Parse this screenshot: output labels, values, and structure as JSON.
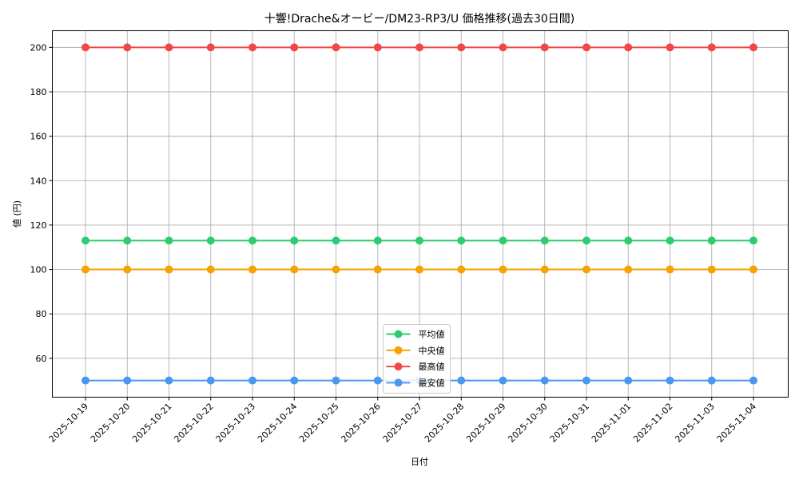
{
  "chart_data": {
    "type": "line",
    "title": "十響!Drache&オービー/DM23-RP3/U 価格推移(過去30日間)",
    "xlabel": "日付",
    "ylabel": "値 (円)",
    "x": [
      "2025-10-19",
      "2025-10-20",
      "2025-10-21",
      "2025-10-22",
      "2025-10-23",
      "2025-10-24",
      "2025-10-25",
      "2025-10-26",
      "2025-10-27",
      "2025-10-28",
      "2025-10-29",
      "2025-10-30",
      "2025-10-31",
      "2025-11-01",
      "2025-11-02",
      "2025-11-03",
      "2025-11-04"
    ],
    "ylim": [
      42.5,
      207.5
    ],
    "yticks": [
      60,
      80,
      100,
      120,
      140,
      160,
      180,
      200
    ],
    "grid": true,
    "legend_position": "lower center",
    "series": [
      {
        "name": "平均値",
        "color": "#2ecc71",
        "values": [
          113,
          113,
          113,
          113,
          113,
          113,
          113,
          113,
          113,
          113,
          113,
          113,
          113,
          113,
          113,
          113,
          113
        ]
      },
      {
        "name": "中央値",
        "color": "#f5a300",
        "values": [
          100,
          100,
          100,
          100,
          100,
          100,
          100,
          100,
          100,
          100,
          100,
          100,
          100,
          100,
          100,
          100,
          100
        ]
      },
      {
        "name": "最高値",
        "color": "#f04848",
        "values": [
          200,
          200,
          200,
          200,
          200,
          200,
          200,
          200,
          200,
          200,
          200,
          200,
          200,
          200,
          200,
          200,
          200
        ]
      },
      {
        "name": "最安値",
        "color": "#4a97f0",
        "values": [
          50,
          50,
          50,
          50,
          50,
          50,
          50,
          50,
          50,
          50,
          50,
          50,
          50,
          50,
          50,
          50,
          50
        ]
      }
    ]
  }
}
